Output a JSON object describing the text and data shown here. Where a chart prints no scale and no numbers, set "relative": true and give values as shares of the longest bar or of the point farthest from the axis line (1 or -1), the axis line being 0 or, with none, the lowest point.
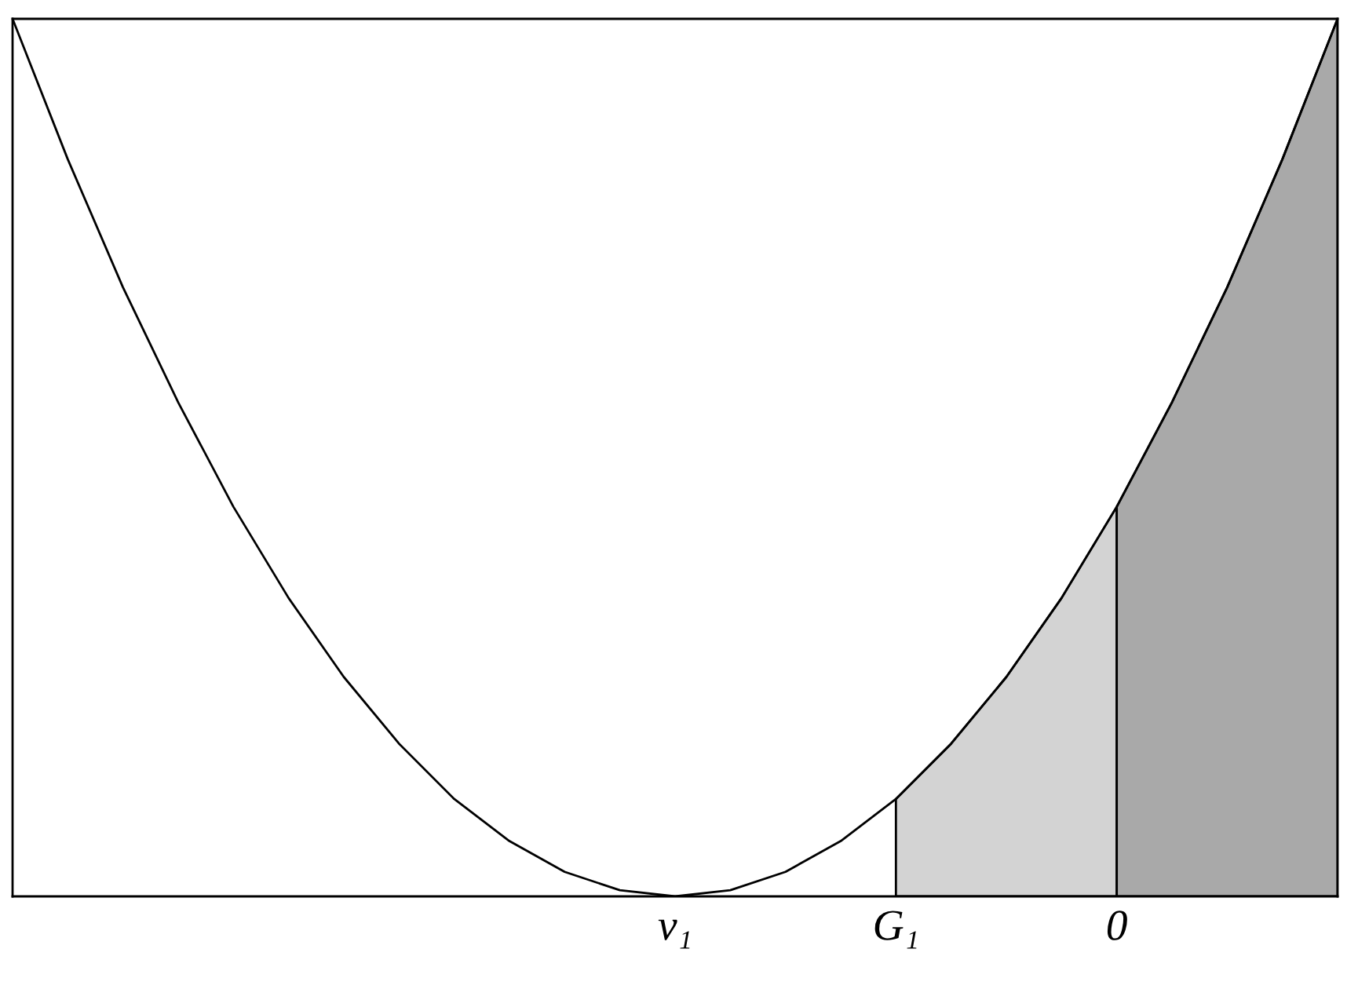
{
  "chart_data": {
    "type": "line",
    "relative": true,
    "categories": [
      null,
      null,
      null,
      null,
      null,
      null,
      null,
      null,
      null,
      null,
      null,
      null,
      "v₁",
      null,
      null,
      null,
      "G₁",
      null,
      null,
      null,
      "0",
      null,
      null,
      null,
      null
    ],
    "series": [
      {
        "type": "area",
        "color": "#d3d3d3",
        "values": [
          null,
          null,
          null,
          null,
          null,
          null,
          null,
          null,
          null,
          null,
          null,
          null,
          null,
          null,
          null,
          null,
          0.111,
          0.174,
          0.25,
          0.34,
          0.444,
          null,
          null,
          null,
          null
        ]
      },
      {
        "type": "area",
        "color": "#a9a9a9",
        "values": [
          null,
          null,
          null,
          null,
          null,
          null,
          null,
          null,
          null,
          null,
          null,
          null,
          null,
          null,
          null,
          null,
          null,
          null,
          null,
          null,
          0.444,
          0.563,
          0.694,
          0.84,
          1
        ]
      },
      {
        "color": "#000000",
        "values": [
          1,
          0.84,
          0.694,
          0.563,
          0.444,
          0.34,
          0.25,
          0.174,
          0.111,
          0.063,
          0.028,
          0.007,
          0,
          0.007,
          0.028,
          0.063,
          0.111,
          0.174,
          0.25,
          0.34,
          0.444,
          0.563,
          0.694,
          0.84,
          1
        ]
      }
    ]
  }
}
